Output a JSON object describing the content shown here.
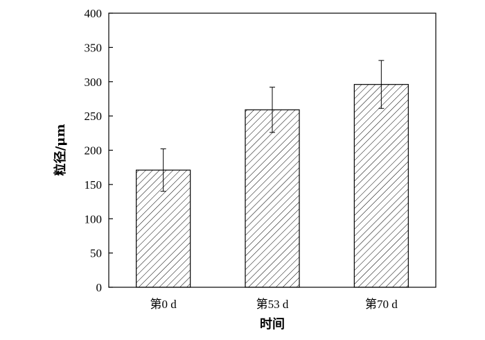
{
  "chart_data": {
    "type": "bar",
    "categories": [
      "第0 d",
      "第53 d",
      "第70 d"
    ],
    "values": [
      171,
      259,
      296
    ],
    "errors": [
      31,
      33,
      35
    ],
    "xlabel": "时间",
    "ylabel": "粒径/μm",
    "ylim": [
      0,
      400
    ],
    "yticks": [
      0,
      50,
      100,
      150,
      200,
      250,
      300,
      350,
      400
    ],
    "bar_fill": "diagonal-hatch",
    "bar_color": "#000000",
    "grid": false,
    "legend": "none"
  }
}
